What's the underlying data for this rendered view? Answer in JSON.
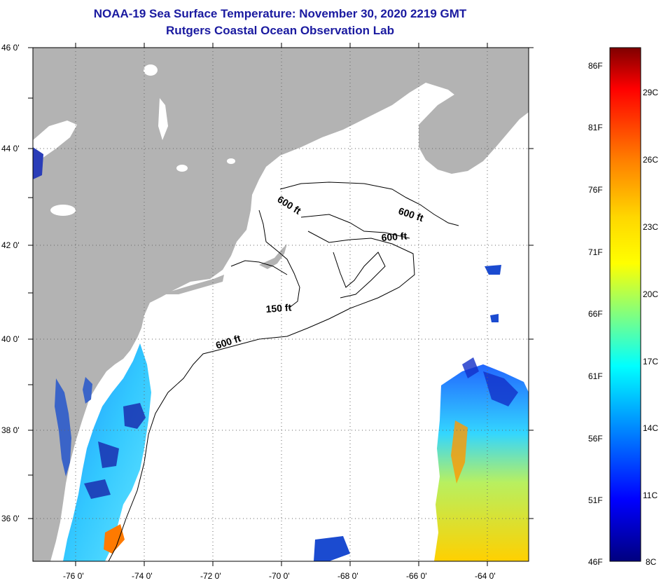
{
  "title": {
    "line1": "NOAA-19 Sea Surface Temperature:  November 30, 2020 2219 GMT",
    "line2": "Rutgers Coastal Ocean Observation Lab"
  },
  "map": {
    "lat_labels": [
      "46 0'",
      "44 0'",
      "42 0'",
      "40 0'",
      "38 0'",
      "36 0'"
    ],
    "lon_labels": [
      "-76 0'",
      "-74 0'",
      "-72 0'",
      "-70 0'",
      "-68 0'",
      "-66 0'",
      "-64 0'"
    ],
    "depth_labels": {
      "north_600": "600 ft",
      "east_600": "600 ft",
      "georges_600": "600 ft",
      "shelf_150": "150 ft",
      "south_600": "600 ft"
    },
    "colors": {
      "land": "#b3b3b3",
      "ocean": "#ffffff",
      "grid": "#666666"
    }
  },
  "colorbar": {
    "fahrenheit": [
      "86F",
      "81F",
      "76F",
      "71F",
      "66F",
      "61F",
      "56F",
      "51F",
      "46F"
    ],
    "celsius": [
      "29C",
      "26C",
      "23C",
      "20C",
      "17C",
      "14C",
      "11C",
      "8C"
    ],
    "gradient_stops": [
      "#7f0000",
      "#ff0000",
      "#ff8000",
      "#ffd700",
      "#ffff00",
      "#80ff80",
      "#00ffff",
      "#0080ff",
      "#0000ff",
      "#00007f"
    ]
  }
}
